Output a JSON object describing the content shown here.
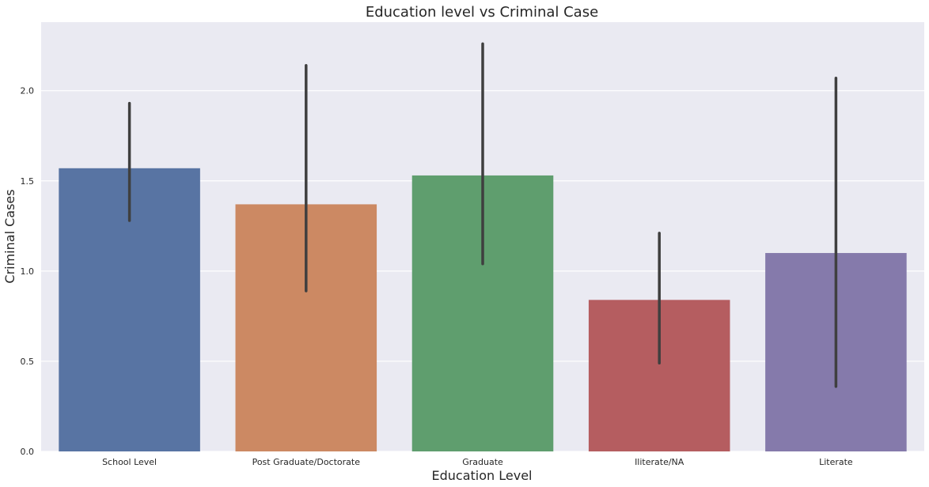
{
  "chart_data": {
    "type": "bar",
    "title": "Education level vs Criminal Case",
    "xlabel": "Education Level",
    "ylabel": "Criminal Cases",
    "categories": [
      "School Level",
      "Post Graduate/Doctorate",
      "Graduate",
      "Iliterate/NA",
      "Literate"
    ],
    "values": [
      1.57,
      1.37,
      1.53,
      0.84,
      1.1
    ],
    "error_low": [
      1.28,
      0.89,
      1.04,
      0.49,
      0.36
    ],
    "error_high": [
      1.93,
      2.14,
      2.26,
      1.21,
      2.07
    ],
    "colors": [
      "#5874a3",
      "#cc8963",
      "#5f9e6e",
      "#b55d60",
      "#857aab"
    ],
    "ylim": [
      0,
      2.38
    ],
    "yticks": [
      0.0,
      0.5,
      1.0,
      1.5,
      2.0
    ],
    "ytick_labels": [
      "0.0",
      "0.5",
      "1.0",
      "1.5",
      "2.0"
    ],
    "grid": true,
    "background": "#eaeaf2",
    "errorbar_color": "#3f3f3f"
  }
}
